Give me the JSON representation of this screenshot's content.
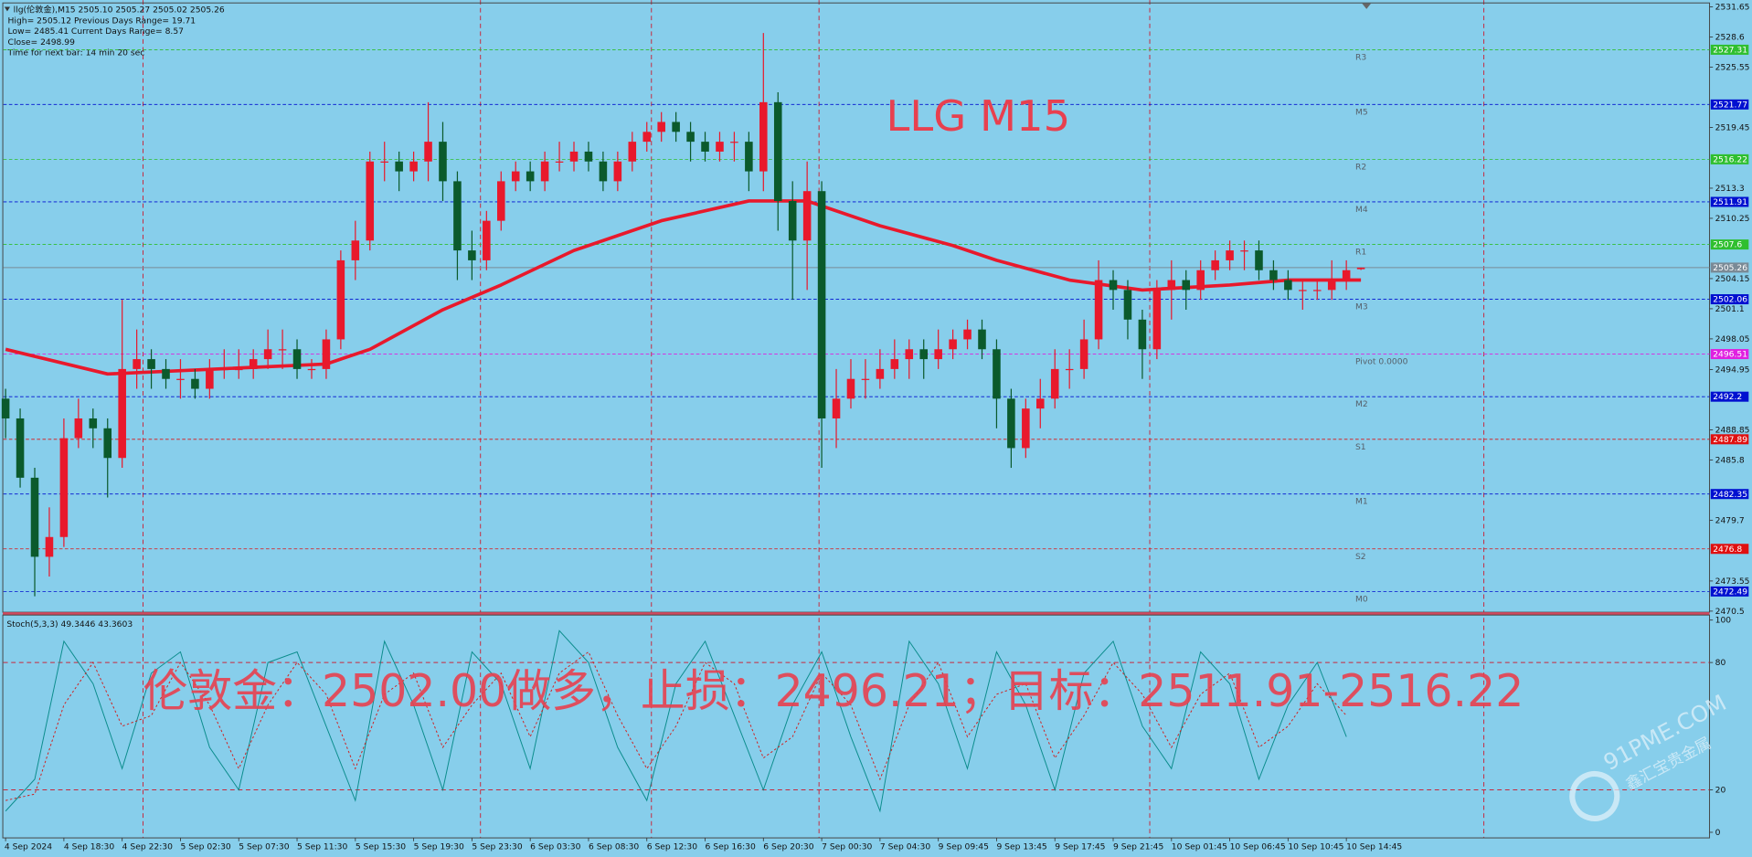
{
  "chart_data": {
    "type": "candlestick",
    "title": "LLG M15",
    "info": [
      "llg(伦敦金),M15  2505.10 2505.27 2505.02 2505.26",
      "High= 2505.12    Previous Days Range= 19.71",
      "Low= 2485.41    Current Days Range= 8.57",
      "Close= 2498.99",
      "Time for next bar: 14 min 20 sec"
    ],
    "annotation": "伦敦金：2502.00做多，止损：2496.21；目标：2511.91-2516.22",
    "watermark": [
      "91PME.COM",
      "鑫汇宝贵金属"
    ],
    "up_color": "#e8192c",
    "down_color": "#0b5a2c",
    "background": "#87ceeb",
    "categories": [
      "4 Sep 2024",
      null,
      null,
      null,
      "4 Sep 18:30",
      null,
      null,
      null,
      "4 Sep 22:30",
      null,
      null,
      null,
      "5 Sep 02:30",
      null,
      null,
      null,
      "5 Sep 07:30",
      null,
      null,
      null,
      "5 Sep 11:30",
      null,
      null,
      null,
      "5 Sep 15:30",
      null,
      null,
      null,
      "5 Sep 19:30",
      null,
      null,
      null,
      "5 Sep 23:30",
      null,
      null,
      null,
      "6 Sep 03:30",
      null,
      null,
      null,
      "6 Sep 08:30",
      null,
      null,
      null,
      "6 Sep 12:30",
      null,
      null,
      null,
      "6 Sep 16:30",
      null,
      null,
      null,
      "6 Sep 20:30",
      null,
      null,
      null,
      "7 Sep 00:30",
      null,
      null,
      null,
      "7 Sep 04:30",
      null,
      null,
      null,
      "9 Sep 09:45",
      null,
      null,
      null,
      "9 Sep 13:45",
      null,
      null,
      null,
      "9 Sep 17:45",
      null,
      null,
      null,
      "9 Sep 21:45",
      null,
      null,
      null,
      "10 Sep 01:45",
      null,
      null,
      null,
      "10 Sep 06:45",
      null,
      null,
      null,
      "10 Sep 10:45",
      null,
      null,
      null,
      "10 Sep 14:45",
      null
    ],
    "open": [
      2492,
      2490,
      2484,
      2476,
      2478,
      2488,
      2490,
      2489,
      2486,
      2495,
      2496,
      2495,
      2494,
      2494,
      2493,
      2495,
      2495,
      2495,
      2496,
      2497,
      2497,
      2495,
      2495,
      2498,
      2506,
      2508,
      2516,
      2516,
      2515,
      2516,
      2518,
      2514,
      2507,
      2506,
      2510,
      2514,
      2515,
      2514,
      2516,
      2516,
      2517,
      2516,
      2514,
      2516,
      2518,
      2519,
      2520,
      2519,
      2518,
      2517,
      2518,
      2518,
      2515,
      2522,
      2512,
      2508,
      2513,
      2490,
      2492,
      2494,
      2494,
      2495,
      2496,
      2497,
      2496,
      2497,
      2498,
      2499,
      2497,
      2492,
      2487,
      2491,
      2492,
      2495,
      2495,
      2498,
      2504,
      2503,
      2500,
      2497,
      2503,
      2504,
      2503,
      2505,
      2506,
      2507,
      2507,
      2505,
      2504,
      2503,
      2503,
      2503,
      2504,
      2505.1
    ],
    "high": [
      2493,
      2491,
      2485,
      2481,
      2490,
      2492,
      2491,
      2490,
      2502,
      2499,
      2497,
      2496,
      2496,
      2495,
      2496,
      2497,
      2497,
      2497,
      2499,
      2499,
      2498,
      2496,
      2499,
      2507,
      2510,
      2517,
      2518,
      2517,
      2517,
      2522,
      2520,
      2515,
      2509,
      2511,
      2515,
      2516,
      2516,
      2517,
      2518,
      2518,
      2518,
      2517,
      2517,
      2519,
      2520,
      2521,
      2521,
      2520,
      2519,
      2519,
      2519,
      2519,
      2529,
      2523,
      2514,
      2516,
      2514,
      2495,
      2496,
      2496,
      2497,
      2498,
      2498,
      2498,
      2499,
      2499,
      2500,
      2500,
      2498,
      2493,
      2492,
      2494,
      2497,
      2497,
      2500,
      2506,
      2505,
      2504,
      2501,
      2504,
      2506,
      2505,
      2506,
      2507,
      2508,
      2508,
      2508,
      2506,
      2505,
      2504,
      2504,
      2506,
      2506,
      2505.27
    ],
    "low": [
      2488,
      2483,
      2472,
      2474,
      2477,
      2487,
      2487,
      2482,
      2485,
      2493,
      2493,
      2493,
      2492,
      2492,
      2492,
      2494,
      2494,
      2494,
      2495,
      2495,
      2494,
      2494,
      2494,
      2497,
      2504,
      2507,
      2514,
      2513,
      2514,
      2514,
      2512,
      2504,
      2504,
      2505,
      2509,
      2513,
      2513,
      2513,
      2515,
      2515,
      2515,
      2513,
      2513,
      2515,
      2517,
      2518,
      2518,
      2516,
      2516,
      2516,
      2516,
      2513,
      2513,
      2509,
      2502,
      2503,
      2485,
      2487,
      2491,
      2492,
      2493,
      2494,
      2494,
      2494,
      2495,
      2496,
      2497,
      2496,
      2489,
      2485,
      2486,
      2489,
      2491,
      2493,
      2494,
      2497,
      2501,
      2498,
      2494,
      2496,
      2500,
      2501,
      2502,
      2504,
      2505,
      2505,
      2504,
      2503,
      2502,
      2501,
      2502,
      2502,
      2503,
      2505.02
    ],
    "close": [
      2490,
      2484,
      2476,
      2478,
      2488,
      2490,
      2489,
      2486,
      2495,
      2496,
      2495,
      2494,
      2494,
      2493,
      2495,
      2495,
      2495,
      2496,
      2497,
      2497,
      2495,
      2495,
      2498,
      2506,
      2508,
      2516,
      2516,
      2515,
      2516,
      2518,
      2514,
      2507,
      2506,
      2510,
      2514,
      2515,
      2514,
      2516,
      2516,
      2517,
      2516,
      2514,
      2516,
      2518,
      2519,
      2520,
      2519,
      2518,
      2517,
      2518,
      2518,
      2515,
      2522,
      2512,
      2508,
      2513,
      2490,
      2492,
      2494,
      2494,
      2495,
      2496,
      2497,
      2496,
      2497,
      2498,
      2499,
      2497,
      2492,
      2487,
      2491,
      2492,
      2495,
      2495,
      2498,
      2504,
      2503,
      2500,
      2497,
      2503,
      2504,
      2503,
      2505,
      2506,
      2507,
      2507,
      2505,
      2504,
      2503,
      2503,
      2503,
      2504,
      2505,
      2505.26
    ],
    "ma": {
      "color": "#e8192c",
      "x": [
        0,
        7,
        22,
        25,
        30,
        34,
        39,
        45,
        51,
        55,
        60,
        65,
        68,
        73,
        78,
        84,
        88,
        93
      ],
      "values": [
        2497,
        2494.5,
        2495.5,
        2497,
        2501,
        2503.5,
        2507,
        2510,
        2512,
        2512,
        2509.5,
        2507.5,
        2506,
        2504,
        2503,
        2503.5,
        2504,
        2504
      ]
    },
    "ylim": [
      2470.5,
      2531.65
    ],
    "yticks": [
      2531.65,
      2528.6,
      2525.55,
      2519.45,
      2513.3,
      2510.25,
      2504.15,
      2501.1,
      2498.05,
      2494.95,
      2488.85,
      2485.8,
      2479.7,
      2473.55,
      2470.5
    ],
    "last_price": {
      "value": 2505.26,
      "color": "#7a8a96"
    },
    "levels": [
      {
        "name": "R3",
        "value": 2527.31,
        "color": "#2fbf2f"
      },
      {
        "name": "M5",
        "value": 2521.77,
        "color": "#0010d0"
      },
      {
        "name": "R2",
        "value": 2516.22,
        "color": "#2fbf2f"
      },
      {
        "name": "M4",
        "value": 2511.91,
        "color": "#0010d0"
      },
      {
        "name": "R1",
        "value": 2507.6,
        "color": "#2fbf2f"
      },
      {
        "name": "M3",
        "value": 2502.06,
        "color": "#0010d0"
      },
      {
        "name": "Pivot  0.0000",
        "value": 2496.51,
        "color": "#e020e0"
      },
      {
        "name": "M2",
        "value": 2492.2,
        "color": "#0010d0"
      },
      {
        "name": "S1",
        "value": 2487.89,
        "color": "#e01010"
      },
      {
        "name": "M1",
        "value": 2482.35,
        "color": "#0010d0"
      },
      {
        "name": "S2",
        "value": 2476.8,
        "color": "#e01010"
      },
      {
        "name": "M0",
        "value": 2472.49,
        "color": "#0010d0"
      }
    ],
    "indicator": {
      "label": "Stoch(5,3,3) 49.3446 43.3603",
      "ylim": [
        0,
        100
      ],
      "yticks": [
        100,
        80,
        20,
        0
      ],
      "grid_ticks": [
        80,
        20
      ],
      "x": [
        0,
        2,
        4,
        6,
        8,
        10,
        12,
        14,
        16,
        18,
        20,
        22,
        24,
        26,
        28,
        30,
        32,
        34,
        36,
        38,
        40,
        42,
        44,
        46,
        48,
        50,
        52,
        54,
        56,
        58,
        60,
        62,
        64,
        66,
        68,
        70,
        72,
        74,
        76,
        78,
        80,
        82,
        84,
        86,
        88,
        90,
        92
      ],
      "main": {
        "color": "#0b8c8c",
        "values": [
          10,
          25,
          90,
          70,
          30,
          75,
          85,
          40,
          20,
          80,
          85,
          50,
          15,
          90,
          60,
          20,
          85,
          70,
          30,
          95,
          80,
          40,
          15,
          70,
          90,
          55,
          20,
          60,
          85,
          45,
          10,
          90,
          70,
          30,
          85,
          60,
          20,
          75,
          90,
          50,
          30,
          85,
          70,
          25,
          60,
          80,
          45
        ]
      },
      "signal": {
        "color": "#d02020",
        "values": [
          15,
          18,
          60,
          80,
          50,
          55,
          80,
          60,
          30,
          60,
          80,
          65,
          30,
          65,
          75,
          40,
          60,
          75,
          45,
          75,
          85,
          55,
          30,
          50,
          80,
          70,
          35,
          45,
          75,
          60,
          25,
          60,
          80,
          45,
          65,
          70,
          35,
          55,
          80,
          65,
          40,
          65,
          75,
          40,
          50,
          70,
          55
        ]
      }
    }
  }
}
